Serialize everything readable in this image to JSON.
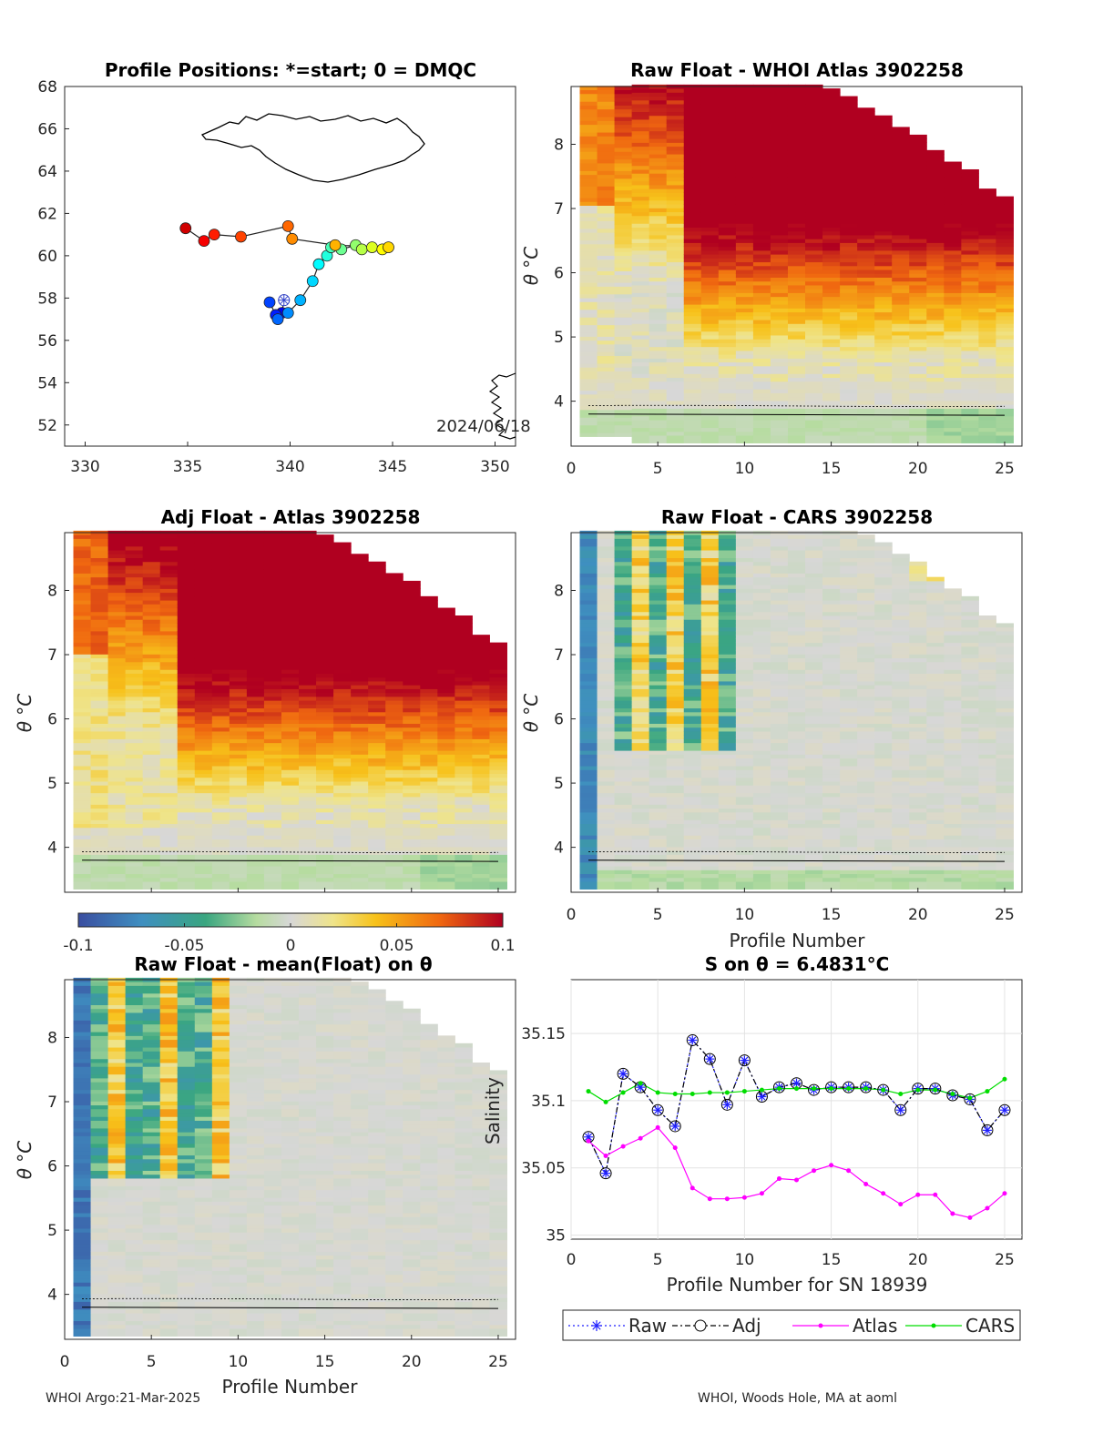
{
  "footer": {
    "left": "WHOI Argo:21-Mar-2025",
    "right": "WHOI, Woods Hole, MA at aoml"
  },
  "chart_data": [
    {
      "id": "map",
      "type": "scatter",
      "title": "Profile Positions: *=start; 0 = DMQC",
      "annotation": "2024/06/18",
      "xlim": [
        329,
        351
      ],
      "ylim": [
        51,
        68
      ],
      "xticks": [
        "330",
        "335",
        "340",
        "345",
        "350"
      ],
      "yticks": [
        "52",
        "54",
        "56",
        "58",
        "60",
        "62",
        "64",
        "66",
        "68"
      ],
      "track_lon": [
        339.7,
        339.6,
        339.3,
        339.0,
        339.4,
        339.9,
        340.5,
        341.1,
        341.4,
        341.8,
        342.0,
        342.5,
        343.2,
        343.5,
        344.0,
        344.5,
        344.8,
        342.2,
        340.1,
        339.9,
        337.6,
        336.3,
        335.8,
        334.9
      ],
      "track_lat": [
        57.9,
        57.3,
        57.2,
        57.8,
        57.0,
        57.3,
        57.9,
        58.8,
        59.6,
        60.0,
        60.4,
        60.3,
        60.5,
        60.3,
        60.4,
        60.3,
        60.4,
        60.5,
        60.8,
        61.4,
        60.9,
        61.0,
        60.7,
        61.3
      ]
    },
    {
      "id": "raw-atlas",
      "type": "heatmap",
      "title": "Raw Float - WHOI Atlas  3902258",
      "ylabel": "θ °C",
      "xlim": [
        0,
        26
      ],
      "ylim": [
        3.3,
        8.9
      ],
      "xticks": [
        "0",
        "5",
        "10",
        "15",
        "20",
        "25"
      ],
      "yticks": [
        "4",
        "5",
        "6",
        "7",
        "8"
      ]
    },
    {
      "id": "adj-atlas",
      "type": "heatmap",
      "title": "Adj Float - Atlas  3902258",
      "ylabel": "θ °C",
      "xlim": [
        0,
        26
      ],
      "ylim": [
        3.3,
        8.9
      ],
      "yticks": [
        "4",
        "5",
        "6",
        "7",
        "8"
      ]
    },
    {
      "id": "raw-cars",
      "type": "heatmap",
      "title": "Raw Float - CARS  3902258",
      "ylabel": "θ °C",
      "xlabel": "Profile Number",
      "xlim": [
        0,
        26
      ],
      "ylim": [
        3.3,
        8.9
      ],
      "xticks": [
        "0",
        "5",
        "10",
        "15",
        "20",
        "25"
      ],
      "yticks": [
        "4",
        "5",
        "6",
        "7",
        "8"
      ]
    },
    {
      "id": "raw-mean",
      "type": "heatmap",
      "title": "Raw Float - mean(Float) on θ",
      "ylabel": "θ °C",
      "xlabel": "Profile Number",
      "xlim": [
        0,
        26
      ],
      "ylim": [
        3.3,
        8.9
      ],
      "xticks": [
        "0",
        "5",
        "10",
        "15",
        "20",
        "25"
      ],
      "yticks": [
        "4",
        "5",
        "6",
        "7",
        "8"
      ]
    },
    {
      "id": "colorbar",
      "type": "colorbar",
      "range": [
        -0.1,
        0.1
      ],
      "ticks": [
        "-0.1",
        "-0.05",
        "0",
        "0.05",
        "0.1"
      ]
    },
    {
      "id": "salinity",
      "type": "line",
      "title": "S on θ = 6.4831°C",
      "xlabel": "Profile Number for SN 18939",
      "ylabel": "Salinity",
      "xlim": [
        0,
        26
      ],
      "ylim": [
        34.997,
        35.19
      ],
      "xticks": [
        "0",
        "5",
        "10",
        "15",
        "20",
        "25"
      ],
      "yticks": [
        "35",
        "35.05",
        "35.1",
        "35.15"
      ],
      "x": [
        1,
        2,
        3,
        4,
        5,
        6,
        7,
        8,
        9,
        10,
        11,
        12,
        13,
        14,
        15,
        16,
        17,
        18,
        19,
        20,
        21,
        22,
        23,
        24,
        25
      ],
      "series": [
        {
          "name": "Raw",
          "color": "#1f1fff",
          "values": [
            35.073,
            35.046,
            35.12,
            35.11,
            35.093,
            35.081,
            35.145,
            35.131,
            35.097,
            35.13,
            35.103,
            35.11,
            35.113,
            35.108,
            35.11,
            35.11,
            35.11,
            35.108,
            35.093,
            35.109,
            35.109,
            35.104,
            35.101,
            35.078,
            35.093
          ]
        },
        {
          "name": "Adj",
          "color": "#000000",
          "values": [
            35.073,
            35.046,
            35.12,
            35.11,
            35.093,
            35.081,
            35.145,
            35.131,
            35.097,
            35.13,
            35.103,
            35.11,
            35.113,
            35.108,
            35.11,
            35.11,
            35.11,
            35.108,
            35.093,
            35.109,
            35.109,
            35.104,
            35.101,
            35.078,
            35.093
          ]
        },
        {
          "name": "Atlas",
          "color": "#ff00ff",
          "values": [
            35.07,
            35.059,
            35.066,
            35.072,
            35.08,
            35.065,
            35.035,
            35.027,
            35.027,
            35.028,
            35.031,
            35.042,
            35.041,
            35.048,
            35.052,
            35.048,
            35.038,
            35.031,
            35.023,
            35.03,
            35.03,
            35.016,
            35.013,
            35.02,
            35.031
          ]
        },
        {
          "name": "CARS",
          "color": "#00dd00",
          "values": [
            35.107,
            35.099,
            35.106,
            35.113,
            35.106,
            35.105,
            35.105,
            35.106,
            35.106,
            35.107,
            35.108,
            35.109,
            35.109,
            35.109,
            35.109,
            35.109,
            35.109,
            35.108,
            35.105,
            35.108,
            35.108,
            35.105,
            35.102,
            35.107,
            35.116
          ]
        }
      ],
      "legend": [
        "Raw",
        "Adj",
        "Atlas",
        "CARS"
      ],
      "legend_position": "bottom"
    }
  ]
}
